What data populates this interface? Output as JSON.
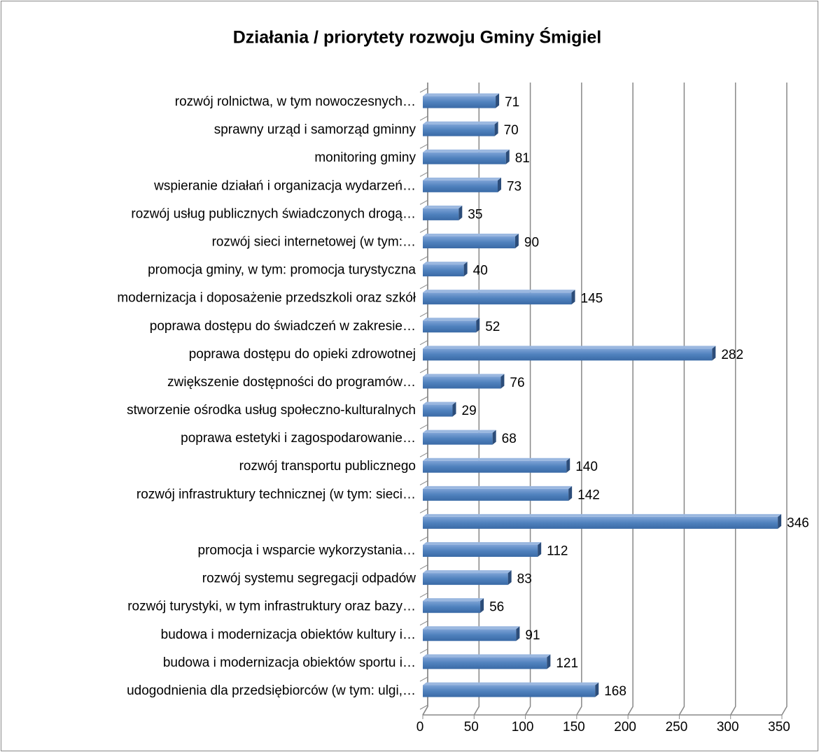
{
  "chart_data": {
    "type": "bar",
    "orientation": "horizontal",
    "title": "Działania / priorytety rozwoju Gminy Śmigiel",
    "categories": [
      "rozwój rolnictwa, w tym nowoczesnych…",
      "sprawny urząd i samorząd gminny",
      "monitoring gminy",
      "wspieranie działań  i organizacja wydarzeń…",
      "rozwój usług publicznych świadczonych drogą…",
      "rozwój sieci internetowej (w tym:…",
      "promocja gminy, w tym: promocja turystyczna",
      "modernizacja i doposażenie przedszkoli oraz szkół",
      "poprawa dostępu do świadczeń w zakresie…",
      "poprawa dostępu do opieki zdrowotnej",
      "zwiększenie dostępności do programów…",
      "stworzenie ośrodka usług społeczno-kulturalnych",
      "poprawa estetyki i zagospodarowanie…",
      "rozwój transportu publicznego",
      "rozwój infrastruktury technicznej (w tym: sieci…",
      null,
      "promocja i wsparcie wykorzystania…",
      "rozwój systemu segregacji odpadów",
      "rozwój turystyki, w tym infrastruktury oraz bazy…",
      "budowa i modernizacja obiektów kultury i…",
      "budowa i modernizacja obiektów sportu i…",
      "udogodnienia dla przedsiębiorców (w tym: ulgi,…"
    ],
    "values": [
      71,
      70,
      81,
      73,
      35,
      90,
      40,
      145,
      52,
      282,
      76,
      29,
      68,
      140,
      142,
      346,
      112,
      83,
      56,
      91,
      121,
      168
    ],
    "color": "#4f81bd",
    "xlim": [
      0,
      350
    ],
    "xticks": [
      0,
      50,
      100,
      150,
      200,
      250,
      300,
      350
    ],
    "grid": true
  }
}
